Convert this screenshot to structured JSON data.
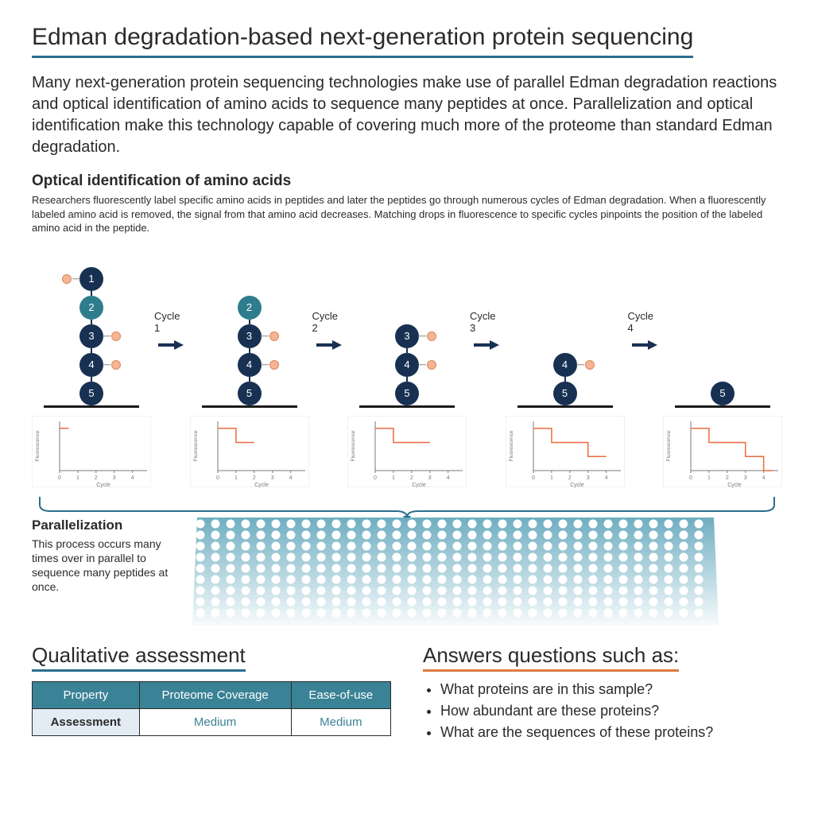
{
  "colors": {
    "title_underline": "#2b6f8c",
    "text": "#2A2A2A",
    "dark_node": "#183153",
    "teal_node": "#2f7d8c",
    "tag_fill": "#f7b494",
    "tag_stroke": "#d88a5e",
    "arrow": "#183153",
    "chart_line": "#ec6b3e",
    "chart_axis": "#7a7a7a",
    "bracket": "#2b6f8c",
    "plate_fill": "#6faec1",
    "table_header_bg": "#3a8295",
    "table_label_bg": "#e3ecf5",
    "questions_underline": "#e07a3f"
  },
  "title": "Edman degradation-based next-generation protein sequencing",
  "intro": "Many next-generation protein sequencing technologies make use of parallel Edman degradation reactions and optical identification of amino acids to sequence many peptides at once. Parallelization and optical identification make this technology capable of covering much more of the proteome than standard Edman degradation.",
  "optical": {
    "heading": "Optical identification of amino acids",
    "desc": "Researchers fluorescently label specific amino acids in peptides and later the peptides go through numerous cycles of Edman degradation. When a fluorescently labeled amino acid is removed, the signal from that amino acid decreases. Matching drops in fluorescence to specific cycles pinpoints the position of the labeled amino acid in the peptide."
  },
  "cycles": {
    "labels": [
      "Cycle 1",
      "Cycle 2",
      "Cycle 3",
      "Cycle 4"
    ],
    "axis_y_label": "Fluorescence",
    "axis_x_label": "Cycle",
    "x_ticks": [
      "0",
      "1",
      "2",
      "3",
      "4"
    ],
    "chains": [
      {
        "residues": [
          {
            "n": "1",
            "c": "dark",
            "tag": "left"
          },
          {
            "n": "2",
            "c": "teal"
          },
          {
            "n": "3",
            "c": "dark",
            "tag": "right"
          },
          {
            "n": "4",
            "c": "dark",
            "tag": "right"
          },
          {
            "n": "5",
            "c": "dark"
          }
        ]
      },
      {
        "residues": [
          {
            "n": "2",
            "c": "teal"
          },
          {
            "n": "3",
            "c": "dark",
            "tag": "right"
          },
          {
            "n": "4",
            "c": "dark",
            "tag": "right"
          },
          {
            "n": "5",
            "c": "dark"
          }
        ]
      },
      {
        "residues": [
          {
            "n": "3",
            "c": "dark",
            "tag": "right"
          },
          {
            "n": "4",
            "c": "dark",
            "tag": "right"
          },
          {
            "n": "5",
            "c": "dark"
          }
        ]
      },
      {
        "residues": [
          {
            "n": "4",
            "c": "dark",
            "tag": "right"
          },
          {
            "n": "5",
            "c": "dark"
          }
        ]
      },
      {
        "residues": [
          {
            "n": "5",
            "c": "dark"
          }
        ]
      }
    ],
    "fluor_traces": [
      [
        [
          0,
          3
        ],
        [
          0.5,
          3
        ]
      ],
      [
        [
          0,
          3
        ],
        [
          1,
          3
        ],
        [
          1,
          2
        ],
        [
          2,
          2
        ]
      ],
      [
        [
          0,
          3
        ],
        [
          1,
          3
        ],
        [
          1,
          2
        ],
        [
          2,
          2
        ],
        [
          3,
          2
        ]
      ],
      [
        [
          0,
          3
        ],
        [
          1,
          3
        ],
        [
          1,
          2
        ],
        [
          2,
          2
        ],
        [
          3,
          2
        ],
        [
          3,
          1
        ],
        [
          4,
          1
        ]
      ],
      [
        [
          0,
          3
        ],
        [
          1,
          3
        ],
        [
          1,
          2
        ],
        [
          2,
          2
        ],
        [
          3,
          2
        ],
        [
          3,
          1
        ],
        [
          4,
          1
        ],
        [
          4,
          0
        ],
        [
          4.5,
          0
        ]
      ]
    ],
    "y_max": 3.5
  },
  "parallel": {
    "heading": "Parallelization",
    "desc": "This process occurs many times over in parallel to sequence many peptides at once.",
    "plate_cols": 34,
    "plate_rows": 9
  },
  "qualitative": {
    "title": "Qualitative assessment",
    "columns": [
      "Property",
      "Proteome Coverage",
      "Ease-of-use"
    ],
    "row_label": "Assessment",
    "values": [
      "Medium",
      "Medium"
    ]
  },
  "questions": {
    "title": "Answers questions such as:",
    "items": [
      "What proteins are in this sample?",
      "How abundant are these proteins?",
      "What are the sequences of these proteins?"
    ]
  }
}
